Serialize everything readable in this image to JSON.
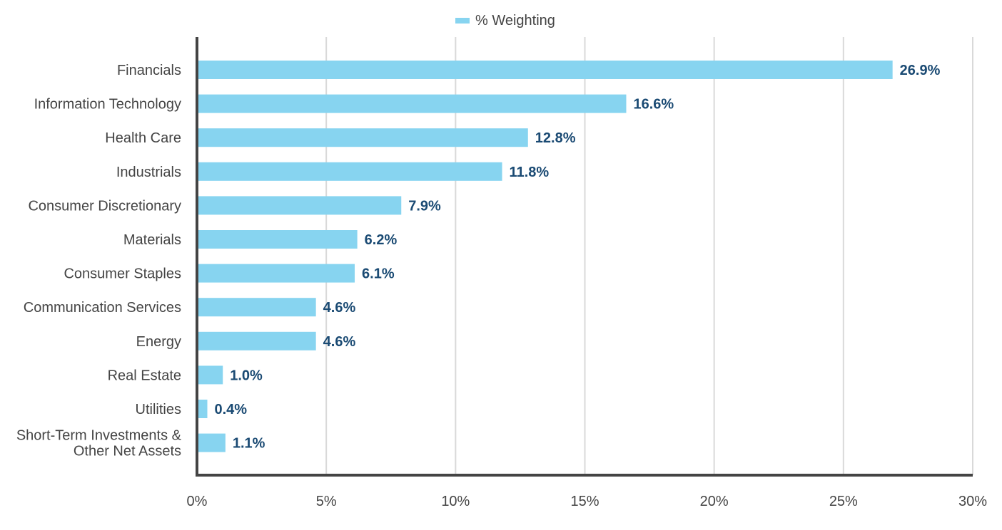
{
  "chart_data": {
    "type": "bar",
    "orientation": "horizontal",
    "categories": [
      "Financials",
      "Information Technology",
      "Health Care",
      "Industrials",
      "Consumer Discretionary",
      "Materials",
      "Consumer Staples",
      "Communication Services",
      "Energy",
      "Real Estate",
      "Utilities",
      [
        "Short-Term Investments &",
        "Other Net Assets"
      ]
    ],
    "series": [
      {
        "name": "% Weighting",
        "values": [
          26.9,
          16.6,
          12.8,
          11.8,
          7.9,
          6.2,
          6.1,
          4.6,
          4.6,
          1.0,
          0.4,
          1.1
        ],
        "labels": [
          "26.9%",
          "16.6%",
          "12.8%",
          "11.8%",
          "7.9%",
          "6.2%",
          "6.1%",
          "4.6%",
          "4.6%",
          "1.0%",
          "0.4%",
          "1.1%"
        ]
      }
    ],
    "xlim": [
      0,
      30
    ],
    "x_ticks": [
      0,
      5,
      10,
      15,
      20,
      25,
      30
    ],
    "x_tick_labels": [
      "0%",
      "5%",
      "10%",
      "15%",
      "20%",
      "25%",
      "30%"
    ],
    "grid": "vertical",
    "legend_position": "top-center",
    "colors": {
      "bar": "#87d4f0",
      "value_label": "#1a4a73",
      "axis": "#444444",
      "grid": "#d9d9d9",
      "text": "#444444"
    }
  }
}
